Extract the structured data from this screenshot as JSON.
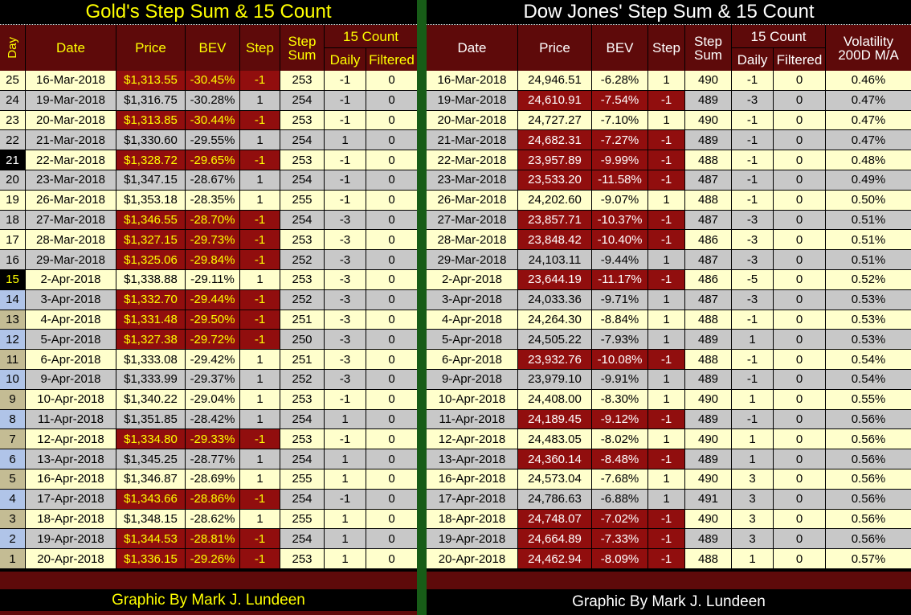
{
  "colors": {
    "maroon": "#5E0A0A",
    "highlight_red": "#910E0E",
    "cream": "#FFFFCC",
    "gray": "#C8C8C8",
    "tan": "#C4BC94",
    "blue": "#B0C4E8",
    "divider_green": "#175C17",
    "title_yellow": "#FFFF00",
    "white": "#FFFFFF"
  },
  "footer": {
    "gold_credit": "Graphic By Mark J. Lundeen",
    "dow_credit": "Graphic By Mark J. Lundeen"
  },
  "chart_data": [
    {
      "id": "gold",
      "type": "table",
      "title": "Gold's Step Sum & 15 Count",
      "header": {
        "day": "Day",
        "date": "Date",
        "price": "Price",
        "bev": "BEV",
        "step": "Step",
        "step_sum_line1": "Step",
        "step_sum_line2": "Sum",
        "count15": "15 Count",
        "daily": "Daily",
        "filtered": "Filtered"
      },
      "rows": [
        {
          "day": 25,
          "date": "16-Mar-2018",
          "price": "$1,313.55",
          "bev": "-30.45%",
          "step": -1,
          "step_sum": 253,
          "daily": -1,
          "filtered": 0
        },
        {
          "day": 24,
          "date": "19-Mar-2018",
          "price": "$1,316.75",
          "bev": "-30.28%",
          "step": 1,
          "step_sum": 254,
          "daily": -1,
          "filtered": 0
        },
        {
          "day": 23,
          "date": "20-Mar-2018",
          "price": "$1,313.85",
          "bev": "-30.44%",
          "step": -1,
          "step_sum": 253,
          "daily": -1,
          "filtered": 0
        },
        {
          "day": 22,
          "date": "21-Mar-2018",
          "price": "$1,330.60",
          "bev": "-29.55%",
          "step": 1,
          "step_sum": 254,
          "daily": 1,
          "filtered": 0
        },
        {
          "day": 21,
          "date": "22-Mar-2018",
          "price": "$1,328.72",
          "bev": "-29.65%",
          "step": -1,
          "step_sum": 253,
          "daily": -1,
          "filtered": 0
        },
        {
          "day": 20,
          "date": "23-Mar-2018",
          "price": "$1,347.15",
          "bev": "-28.67%",
          "step": 1,
          "step_sum": 254,
          "daily": -1,
          "filtered": 0
        },
        {
          "day": 19,
          "date": "26-Mar-2018",
          "price": "$1,353.18",
          "bev": "-28.35%",
          "step": 1,
          "step_sum": 255,
          "daily": -1,
          "filtered": 0
        },
        {
          "day": 18,
          "date": "27-Mar-2018",
          "price": "$1,346.55",
          "bev": "-28.70%",
          "step": -1,
          "step_sum": 254,
          "daily": -3,
          "filtered": 0
        },
        {
          "day": 17,
          "date": "28-Mar-2018",
          "price": "$1,327.15",
          "bev": "-29.73%",
          "step": -1,
          "step_sum": 253,
          "daily": -3,
          "filtered": 0
        },
        {
          "day": 16,
          "date": "29-Mar-2018",
          "price": "$1,325.06",
          "bev": "-29.84%",
          "step": -1,
          "step_sum": 252,
          "daily": -3,
          "filtered": 0
        },
        {
          "day": 15,
          "date": "2-Apr-2018",
          "price": "$1,338.88",
          "bev": "-29.11%",
          "step": 1,
          "step_sum": 253,
          "daily": -3,
          "filtered": 0
        },
        {
          "day": 14,
          "date": "3-Apr-2018",
          "price": "$1,332.70",
          "bev": "-29.44%",
          "step": -1,
          "step_sum": 252,
          "daily": -3,
          "filtered": 0
        },
        {
          "day": 13,
          "date": "4-Apr-2018",
          "price": "$1,331.48",
          "bev": "-29.50%",
          "step": -1,
          "step_sum": 251,
          "daily": -3,
          "filtered": 0
        },
        {
          "day": 12,
          "date": "5-Apr-2018",
          "price": "$1,327.38",
          "bev": "-29.72%",
          "step": -1,
          "step_sum": 250,
          "daily": -3,
          "filtered": 0
        },
        {
          "day": 11,
          "date": "6-Apr-2018",
          "price": "$1,333.08",
          "bev": "-29.42%",
          "step": 1,
          "step_sum": 251,
          "daily": -3,
          "filtered": 0
        },
        {
          "day": 10,
          "date": "9-Apr-2018",
          "price": "$1,333.99",
          "bev": "-29.37%",
          "step": 1,
          "step_sum": 252,
          "daily": -3,
          "filtered": 0
        },
        {
          "day": 9,
          "date": "10-Apr-2018",
          "price": "$1,340.22",
          "bev": "-29.04%",
          "step": 1,
          "step_sum": 253,
          "daily": -1,
          "filtered": 0
        },
        {
          "day": 8,
          "date": "11-Apr-2018",
          "price": "$1,351.85",
          "bev": "-28.42%",
          "step": 1,
          "step_sum": 254,
          "daily": 1,
          "filtered": 0
        },
        {
          "day": 7,
          "date": "12-Apr-2018",
          "price": "$1,334.80",
          "bev": "-29.33%",
          "step": -1,
          "step_sum": 253,
          "daily": -1,
          "filtered": 0
        },
        {
          "day": 6,
          "date": "13-Apr-2018",
          "price": "$1,345.25",
          "bev": "-28.77%",
          "step": 1,
          "step_sum": 254,
          "daily": 1,
          "filtered": 0
        },
        {
          "day": 5,
          "date": "16-Apr-2018",
          "price": "$1,346.87",
          "bev": "-28.69%",
          "step": 1,
          "step_sum": 255,
          "daily": 1,
          "filtered": 0
        },
        {
          "day": 4,
          "date": "17-Apr-2018",
          "price": "$1,343.66",
          "bev": "-28.86%",
          "step": -1,
          "step_sum": 254,
          "daily": -1,
          "filtered": 0
        },
        {
          "day": 3,
          "date": "18-Apr-2018",
          "price": "$1,348.15",
          "bev": "-28.62%",
          "step": 1,
          "step_sum": 255,
          "daily": 1,
          "filtered": 0
        },
        {
          "day": 2,
          "date": "19-Apr-2018",
          "price": "$1,344.53",
          "bev": "-28.81%",
          "step": -1,
          "step_sum": 254,
          "daily": 1,
          "filtered": 0
        },
        {
          "day": 1,
          "date": "20-Apr-2018",
          "price": "$1,336.15",
          "bev": "-29.26%",
          "step": -1,
          "step_sum": 253,
          "daily": 1,
          "filtered": 0
        }
      ]
    },
    {
      "id": "dow",
      "type": "table",
      "title": "Dow Jones' Step Sum & 15 Count",
      "header": {
        "date": "Date",
        "price": "Price",
        "bev": "BEV",
        "step": "Step",
        "step_sum_line1": "Step",
        "step_sum_line2": "Sum",
        "count15": "15 Count",
        "daily": "Daily",
        "filtered": "Filtered",
        "volatility_line1": "Volatility",
        "volatility_line2": "200D M/A"
      },
      "rows": [
        {
          "date": "16-Mar-2018",
          "price": "24,946.51",
          "bev": "-6.28%",
          "step": 1,
          "step_sum": 490,
          "daily": -1,
          "filtered": 0,
          "volatility": "0.46%"
        },
        {
          "date": "19-Mar-2018",
          "price": "24,610.91",
          "bev": "-7.54%",
          "step": -1,
          "step_sum": 489,
          "daily": -3,
          "filtered": 0,
          "volatility": "0.47%"
        },
        {
          "date": "20-Mar-2018",
          "price": "24,727.27",
          "bev": "-7.10%",
          "step": 1,
          "step_sum": 490,
          "daily": -1,
          "filtered": 0,
          "volatility": "0.47%"
        },
        {
          "date": "21-Mar-2018",
          "price": "24,682.31",
          "bev": "-7.27%",
          "step": -1,
          "step_sum": 489,
          "daily": -1,
          "filtered": 0,
          "volatility": "0.47%"
        },
        {
          "date": "22-Mar-2018",
          "price": "23,957.89",
          "bev": "-9.99%",
          "step": -1,
          "step_sum": 488,
          "daily": -1,
          "filtered": 0,
          "volatility": "0.48%"
        },
        {
          "date": "23-Mar-2018",
          "price": "23,533.20",
          "bev": "-11.58%",
          "step": -1,
          "step_sum": 487,
          "daily": -1,
          "filtered": 0,
          "volatility": "0.49%"
        },
        {
          "date": "26-Mar-2018",
          "price": "24,202.60",
          "bev": "-9.07%",
          "step": 1,
          "step_sum": 488,
          "daily": -1,
          "filtered": 0,
          "volatility": "0.50%"
        },
        {
          "date": "27-Mar-2018",
          "price": "23,857.71",
          "bev": "-10.37%",
          "step": -1,
          "step_sum": 487,
          "daily": -3,
          "filtered": 0,
          "volatility": "0.51%"
        },
        {
          "date": "28-Mar-2018",
          "price": "23,848.42",
          "bev": "-10.40%",
          "step": -1,
          "step_sum": 486,
          "daily": -3,
          "filtered": 0,
          "volatility": "0.51%"
        },
        {
          "date": "29-Mar-2018",
          "price": "24,103.11",
          "bev": "-9.44%",
          "step": 1,
          "step_sum": 487,
          "daily": -3,
          "filtered": 0,
          "volatility": "0.51%"
        },
        {
          "date": "2-Apr-2018",
          "price": "23,644.19",
          "bev": "-11.17%",
          "step": -1,
          "step_sum": 486,
          "daily": -5,
          "filtered": 0,
          "volatility": "0.52%"
        },
        {
          "date": "3-Apr-2018",
          "price": "24,033.36",
          "bev": "-9.71%",
          "step": 1,
          "step_sum": 487,
          "daily": -3,
          "filtered": 0,
          "volatility": "0.53%"
        },
        {
          "date": "4-Apr-2018",
          "price": "24,264.30",
          "bev": "-8.84%",
          "step": 1,
          "step_sum": 488,
          "daily": -1,
          "filtered": 0,
          "volatility": "0.53%"
        },
        {
          "date": "5-Apr-2018",
          "price": "24,505.22",
          "bev": "-7.93%",
          "step": 1,
          "step_sum": 489,
          "daily": 1,
          "filtered": 0,
          "volatility": "0.53%"
        },
        {
          "date": "6-Apr-2018",
          "price": "23,932.76",
          "bev": "-10.08%",
          "step": -1,
          "step_sum": 488,
          "daily": -1,
          "filtered": 0,
          "volatility": "0.54%"
        },
        {
          "date": "9-Apr-2018",
          "price": "23,979.10",
          "bev": "-9.91%",
          "step": 1,
          "step_sum": 489,
          "daily": -1,
          "filtered": 0,
          "volatility": "0.54%"
        },
        {
          "date": "10-Apr-2018",
          "price": "24,408.00",
          "bev": "-8.30%",
          "step": 1,
          "step_sum": 490,
          "daily": 1,
          "filtered": 0,
          "volatility": "0.55%"
        },
        {
          "date": "11-Apr-2018",
          "price": "24,189.45",
          "bev": "-9.12%",
          "step": -1,
          "step_sum": 489,
          "daily": -1,
          "filtered": 0,
          "volatility": "0.56%"
        },
        {
          "date": "12-Apr-2018",
          "price": "24,483.05",
          "bev": "-8.02%",
          "step": 1,
          "step_sum": 490,
          "daily": 1,
          "filtered": 0,
          "volatility": "0.56%"
        },
        {
          "date": "13-Apr-2018",
          "price": "24,360.14",
          "bev": "-8.48%",
          "step": -1,
          "step_sum": 489,
          "daily": 1,
          "filtered": 0,
          "volatility": "0.56%"
        },
        {
          "date": "16-Apr-2018",
          "price": "24,573.04",
          "bev": "-7.68%",
          "step": 1,
          "step_sum": 490,
          "daily": 3,
          "filtered": 0,
          "volatility": "0.56%"
        },
        {
          "date": "17-Apr-2018",
          "price": "24,786.63",
          "bev": "-6.88%",
          "step": 1,
          "step_sum": 491,
          "daily": 3,
          "filtered": 0,
          "volatility": "0.56%"
        },
        {
          "date": "18-Apr-2018",
          "price": "24,748.07",
          "bev": "-7.02%",
          "step": -1,
          "step_sum": 490,
          "daily": 3,
          "filtered": 0,
          "volatility": "0.56%"
        },
        {
          "date": "19-Apr-2018",
          "price": "24,664.89",
          "bev": "-7.33%",
          "step": -1,
          "step_sum": 489,
          "daily": 3,
          "filtered": 0,
          "volatility": "0.56%"
        },
        {
          "date": "20-Apr-2018",
          "price": "24,462.94",
          "bev": "-8.09%",
          "step": -1,
          "step_sum": 488,
          "daily": 1,
          "filtered": 0,
          "volatility": "0.57%"
        }
      ]
    }
  ]
}
